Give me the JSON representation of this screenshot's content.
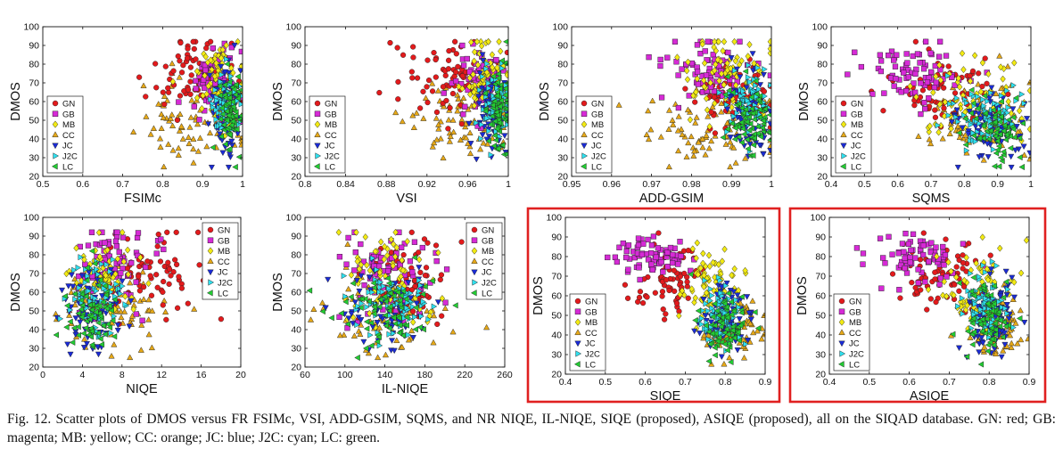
{
  "caption": "Fig. 12.   Scatter plots of DMOS versus FR FSIMc, VSI, ADD-GSIM, SQMS, and NR NIQE, IL-NIQE, SIQE (proposed), ASIQE (proposed), all on the SIQAD database. GN: red; GB: magenta; MB: yellow; CC: orange; JC: blue; J2C: cyan; LC: green.",
  "colors": {
    "GN": "#e31a1c",
    "GB": "#d62ad6",
    "MB": "#f2ea12",
    "CC": "#e6a817",
    "JC": "#1a2bd6",
    "J2C": "#2ee0ee",
    "LC": "#22cc33",
    "highlight": "#e02020"
  },
  "chart_data": [
    {
      "type": "scatter",
      "xlabel": "FSIMc",
      "ylabel": "DMOS",
      "xlim": [
        0.5,
        1
      ],
      "ylim": [
        20,
        100
      ],
      "xticks": [
        "0.5",
        "0.6",
        "0.7",
        "0.8",
        "0.9",
        "1"
      ],
      "yticks": [
        "20",
        "30",
        "40",
        "50",
        "60",
        "70",
        "80",
        "90",
        "100"
      ],
      "legend": [
        "GN",
        "GB",
        "MB",
        "CC",
        "JC",
        "J2C",
        "LC"
      ],
      "legend_position": "middle-left",
      "highlighted": false,
      "clusters": {
        "GN": [
          [
            0.88,
            72,
            0.06,
            12
          ]
        ],
        "GB": [
          [
            0.93,
            70,
            0.03,
            10
          ]
        ],
        "MB": [
          [
            0.94,
            72,
            0.03,
            11
          ]
        ],
        "CC": [
          [
            0.88,
            47,
            0.07,
            11
          ]
        ],
        "JC": [
          [
            0.96,
            55,
            0.02,
            12
          ]
        ],
        "J2C": [
          [
            0.96,
            58,
            0.02,
            10
          ]
        ],
        "LC": [
          [
            0.97,
            52,
            0.015,
            11
          ]
        ]
      }
    },
    {
      "type": "scatter",
      "xlabel": "VSI",
      "ylabel": "DMOS",
      "xlim": [
        0.8,
        1
      ],
      "ylim": [
        20,
        100
      ],
      "xticks": [
        "0.8",
        "0.84",
        "0.88",
        "0.92",
        "0.96",
        "1"
      ],
      "yticks": [
        "20",
        "30",
        "40",
        "50",
        "60",
        "70",
        "80",
        "90",
        "100"
      ],
      "legend": [
        "GN",
        "GB",
        "MB",
        "CC",
        "JC",
        "J2C",
        "LC"
      ],
      "legend_position": "middle-left",
      "highlighted": false,
      "clusters": {
        "GN": [
          [
            0.935,
            73,
            0.025,
            10
          ]
        ],
        "GB": [
          [
            0.975,
            72,
            0.012,
            10
          ]
        ],
        "MB": [
          [
            0.98,
            73,
            0.012,
            10
          ]
        ],
        "CC": [
          [
            0.955,
            48,
            0.03,
            11
          ]
        ],
        "JC": [
          [
            0.985,
            55,
            0.008,
            12
          ]
        ],
        "J2C": [
          [
            0.986,
            58,
            0.008,
            10
          ]
        ],
        "LC": [
          [
            0.99,
            52,
            0.006,
            11
          ]
        ]
      }
    },
    {
      "type": "scatter",
      "xlabel": "ADD-GSIM",
      "ylabel": "DMOS",
      "xlim": [
        0.95,
        1
      ],
      "ylim": [
        20,
        100
      ],
      "xticks": [
        "0.95",
        "0.96",
        "0.97",
        "0.98",
        "0.99",
        "1"
      ],
      "yticks": [
        "20",
        "30",
        "40",
        "50",
        "60",
        "70",
        "80",
        "90",
        "100"
      ],
      "legend": [
        "GN",
        "GB",
        "MB",
        "CC",
        "JC",
        "J2C",
        "LC"
      ],
      "legend_position": "middle-left",
      "highlighted": false,
      "clusters": {
        "GN": [
          [
            0.99,
            62,
            0.005,
            10
          ]
        ],
        "GB": [
          [
            0.985,
            75,
            0.006,
            9
          ]
        ],
        "MB": [
          [
            0.988,
            72,
            0.006,
            12
          ]
        ],
        "CC": [
          [
            0.985,
            45,
            0.009,
            10
          ]
        ],
        "JC": [
          [
            0.995,
            52,
            0.003,
            12
          ]
        ],
        "J2C": [
          [
            0.994,
            58,
            0.003,
            10
          ]
        ],
        "LC": [
          [
            0.995,
            50,
            0.003,
            10
          ]
        ]
      }
    },
    {
      "type": "scatter",
      "xlabel": "SQMS",
      "ylabel": "DMOS",
      "xlim": [
        0.4,
        1
      ],
      "ylim": [
        20,
        100
      ],
      "xticks": [
        "0.4",
        "0.5",
        "0.6",
        "0.7",
        "0.8",
        "0.9",
        "1"
      ],
      "yticks": [
        "20",
        "30",
        "40",
        "50",
        "60",
        "70",
        "80",
        "90",
        "100"
      ],
      "legend": [
        "GN",
        "GB",
        "MB",
        "CC",
        "JC",
        "J2C",
        "LC"
      ],
      "legend_position": "middle-left",
      "highlighted": false,
      "clusters": {
        "GN": [
          [
            0.72,
            68,
            0.08,
            9
          ]
        ],
        "GB": [
          [
            0.66,
            75,
            0.08,
            8
          ]
        ],
        "MB": [
          [
            0.82,
            58,
            0.08,
            12
          ]
        ],
        "CC": [
          [
            0.84,
            50,
            0.08,
            12
          ]
        ],
        "JC": [
          [
            0.88,
            47,
            0.06,
            9
          ]
        ],
        "J2C": [
          [
            0.87,
            52,
            0.06,
            9
          ]
        ],
        "LC": [
          [
            0.89,
            45,
            0.05,
            9
          ]
        ]
      }
    },
    {
      "type": "scatter",
      "xlabel": "NIQE",
      "ylabel": "DMOS",
      "xlim": [
        0,
        20
      ],
      "ylim": [
        20,
        100
      ],
      "xticks": [
        "0",
        "4",
        "8",
        "12",
        "16",
        "20"
      ],
      "yticks": [
        "20",
        "30",
        "40",
        "50",
        "60",
        "70",
        "80",
        "90",
        "100"
      ],
      "legend": [
        "GN",
        "GB",
        "MB",
        "CC",
        "JC",
        "J2C",
        "LC"
      ],
      "legend_position": "top-right",
      "highlighted": false,
      "clusters": {
        "GN": [
          [
            11,
            70,
            2.5,
            12
          ]
        ],
        "GB": [
          [
            7,
            75,
            2,
            10
          ]
        ],
        "MB": [
          [
            6,
            70,
            1.5,
            10
          ]
        ],
        "CC": [
          [
            8,
            50,
            3.5,
            12
          ]
        ],
        "JC": [
          [
            5,
            50,
            1.5,
            10
          ]
        ],
        "J2C": [
          [
            5.5,
            58,
            1.5,
            10
          ]
        ],
        "LC": [
          [
            5,
            48,
            1.3,
            9
          ]
        ]
      }
    },
    {
      "type": "scatter",
      "xlabel": "IL-NIQE",
      "ylabel": "DMOS",
      "xlim": [
        60,
        260
      ],
      "ylim": [
        20,
        100
      ],
      "xticks": [
        "60",
        "100",
        "140",
        "180",
        "220",
        "260"
      ],
      "yticks": [
        "20",
        "30",
        "40",
        "50",
        "60",
        "70",
        "80",
        "90",
        "100"
      ],
      "legend": [
        "GN",
        "GB",
        "MB",
        "CC",
        "JC",
        "J2C",
        "LC"
      ],
      "legend_position": "top-right",
      "highlighted": false,
      "clusters": {
        "GN": [
          [
            165,
            65,
            20,
            13
          ]
        ],
        "GB": [
          [
            140,
            70,
            25,
            12
          ]
        ],
        "MB": [
          [
            140,
            68,
            22,
            12
          ]
        ],
        "CC": [
          [
            140,
            50,
            30,
            12
          ]
        ],
        "JC": [
          [
            140,
            52,
            22,
            11
          ]
        ],
        "J2C": [
          [
            145,
            55,
            20,
            10
          ]
        ],
        "LC": [
          [
            140,
            50,
            22,
            10
          ]
        ]
      }
    },
    {
      "type": "scatter",
      "xlabel": "SIQE",
      "ylabel": "DMOS",
      "xlim": [
        0.4,
        0.9
      ],
      "ylim": [
        20,
        100
      ],
      "xticks": [
        "0.4",
        "0.5",
        "0.6",
        "0.7",
        "0.8",
        "0.9"
      ],
      "yticks": [
        "20",
        "30",
        "40",
        "50",
        "60",
        "70",
        "80",
        "90",
        "100"
      ],
      "legend": [
        "GN",
        "GB",
        "MB",
        "CC",
        "JC",
        "J2C",
        "LC"
      ],
      "legend_position": "middle-left",
      "highlighted": true,
      "clusters": {
        "GN": [
          [
            0.66,
            65,
            0.05,
            9
          ]
        ],
        "GB": [
          [
            0.62,
            80,
            0.05,
            5
          ]
        ],
        "MB": [
          [
            0.76,
            65,
            0.04,
            10
          ]
        ],
        "CC": [
          [
            0.82,
            42,
            0.04,
            9
          ]
        ],
        "JC": [
          [
            0.8,
            48,
            0.03,
            9
          ]
        ],
        "J2C": [
          [
            0.79,
            52,
            0.03,
            8
          ]
        ],
        "LC": [
          [
            0.8,
            45,
            0.025,
            8
          ]
        ]
      }
    },
    {
      "type": "scatter",
      "xlabel": "ASIQE",
      "ylabel": "DMOS",
      "xlim": [
        0.4,
        0.9
      ],
      "ylim": [
        20,
        100
      ],
      "xticks": [
        "0.4",
        "0.5",
        "0.6",
        "0.7",
        "0.8",
        "0.9"
      ],
      "yticks": [
        "20",
        "30",
        "40",
        "50",
        "60",
        "70",
        "80",
        "90",
        "100"
      ],
      "legend": [
        "GN",
        "GB",
        "MB",
        "CC",
        "JC",
        "J2C",
        "LC"
      ],
      "legend_position": "middle-left",
      "highlighted": true,
      "clusters": {
        "GN": [
          [
            0.68,
            72,
            0.06,
            9
          ]
        ],
        "GB": [
          [
            0.62,
            80,
            0.06,
            6
          ]
        ],
        "MB": [
          [
            0.78,
            62,
            0.05,
            10
          ]
        ],
        "CC": [
          [
            0.82,
            45,
            0.04,
            10
          ]
        ],
        "JC": [
          [
            0.8,
            50,
            0.03,
            10
          ]
        ],
        "J2C": [
          [
            0.79,
            55,
            0.03,
            9
          ]
        ],
        "LC": [
          [
            0.8,
            47,
            0.03,
            9
          ]
        ]
      }
    }
  ]
}
